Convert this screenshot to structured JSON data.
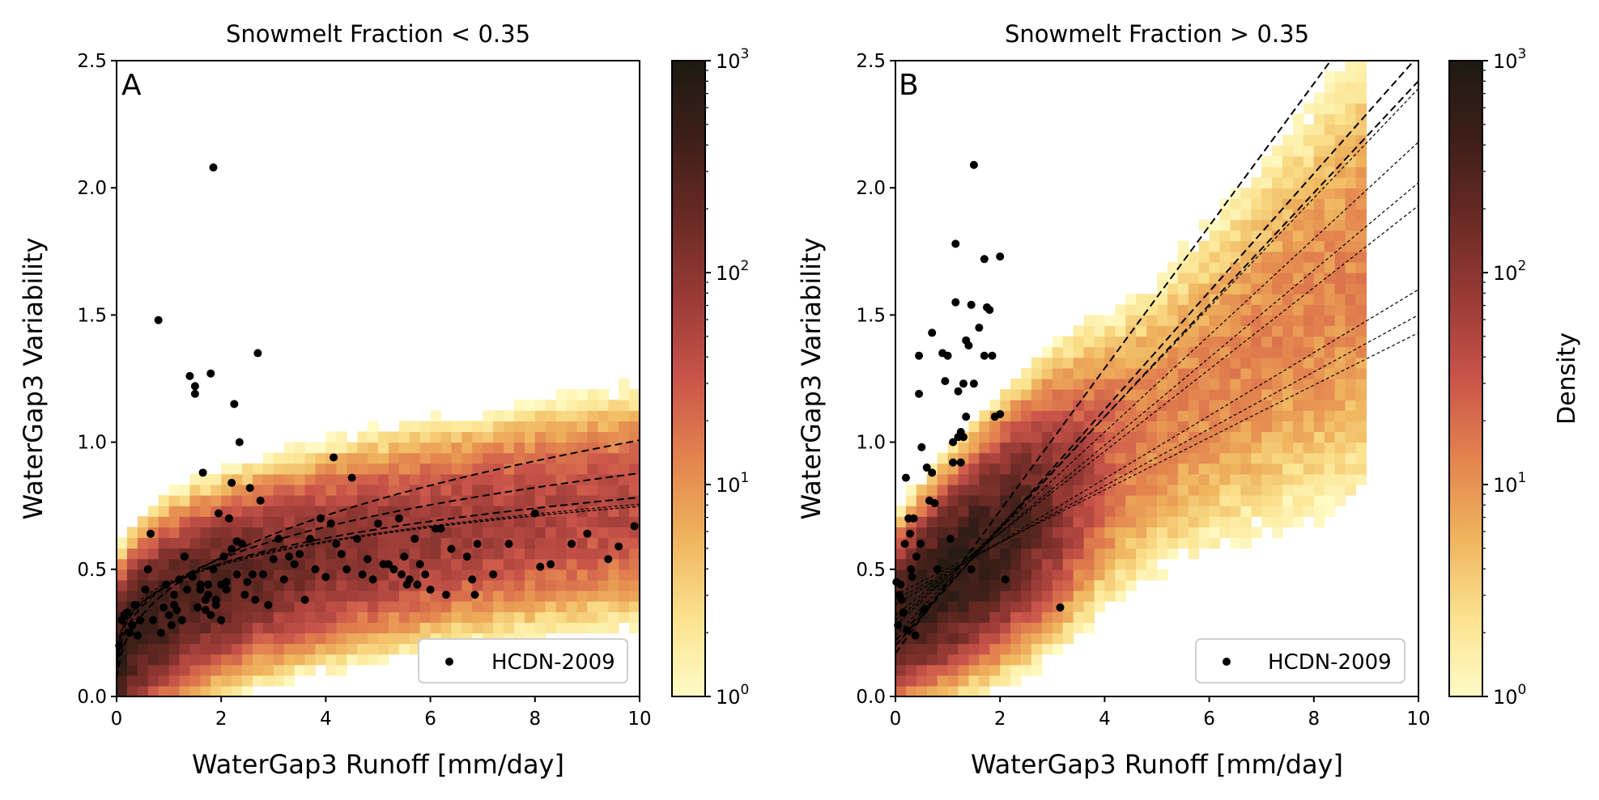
{
  "colorbar_colors": [
    "#fffbc6",
    "#fbe28e",
    "#efb35d",
    "#e3834e",
    "#c9544a",
    "#9a3b36",
    "#6b2a25",
    "#3e1f19",
    "#1d1a10"
  ],
  "chart_data": [
    {
      "type": "heatmap",
      "panel_letter": "A",
      "title": "Snowmelt Fraction < 0.35",
      "xlabel": "WaterGap3 Runoff [mm/day]",
      "ylabel": "WaterGap3 Variability",
      "xlim": [
        0,
        10
      ],
      "ylim": [
        0,
        2.5
      ],
      "xticks": [
        "0",
        "2",
        "4",
        "6",
        "8",
        "10"
      ],
      "yticks": [
        "0.0",
        "0.5",
        "1.0",
        "1.5",
        "2.0",
        "2.5"
      ],
      "legend": {
        "label": "HCDN-2009",
        "placement": "lower-right"
      },
      "colorbar": {
        "scale": "log",
        "range": [
          1,
          1000
        ],
        "ticks": [
          "10",
          "10",
          "10",
          "10"
        ],
        "tick_exponents": [
          "3",
          "2",
          "1",
          "0"
        ],
        "label": ""
      },
      "density_model": {
        "kind": "power-law",
        "center_a": 0.35,
        "center_b": 0.33,
        "spread": 0.14,
        "x_extent": 10,
        "peak": 450
      },
      "points": [
        [
          0.05,
          0.2
        ],
        [
          0.1,
          0.3
        ],
        [
          0.15,
          0.32
        ],
        [
          0.2,
          0.33
        ],
        [
          0.25,
          0.25
        ],
        [
          0.3,
          0.28
        ],
        [
          0.35,
          0.36
        ],
        [
          0.4,
          0.24
        ],
        [
          0.45,
          0.3
        ],
        [
          0.55,
          0.42
        ],
        [
          0.6,
          0.5
        ],
        [
          0.65,
          0.64
        ],
        [
          0.7,
          0.3
        ],
        [
          0.8,
          1.48
        ],
        [
          0.85,
          0.25
        ],
        [
          0.9,
          0.35
        ],
        [
          0.95,
          0.44
        ],
        [
          1.0,
          0.32
        ],
        [
          1.05,
          0.28
        ],
        [
          1.1,
          0.4
        ],
        [
          1.1,
          0.36
        ],
        [
          1.15,
          0.34
        ],
        [
          1.2,
          0.46
        ],
        [
          1.25,
          0.3
        ],
        [
          1.3,
          0.55
        ],
        [
          1.35,
          0.42
        ],
        [
          1.4,
          1.26
        ],
        [
          1.45,
          0.47
        ],
        [
          1.5,
          1.22
        ],
        [
          1.5,
          1.19
        ],
        [
          1.55,
          0.35
        ],
        [
          1.6,
          0.44
        ],
        [
          1.6,
          0.42
        ],
        [
          1.65,
          0.88
        ],
        [
          1.7,
          0.38
        ],
        [
          1.7,
          0.34
        ],
        [
          1.75,
          0.4
        ],
        [
          1.75,
          0.44
        ],
        [
          1.8,
          1.27
        ],
        [
          1.8,
          0.32
        ],
        [
          1.85,
          2.08
        ],
        [
          1.85,
          0.5
        ],
        [
          1.9,
          0.38
        ],
        [
          1.9,
          0.36
        ],
        [
          1.95,
          0.72
        ],
        [
          2.0,
          0.3
        ],
        [
          2.0,
          0.44
        ],
        [
          2.05,
          0.55
        ],
        [
          2.1,
          0.42
        ],
        [
          2.1,
          0.45
        ],
        [
          2.15,
          0.7
        ],
        [
          2.2,
          0.84
        ],
        [
          2.2,
          0.58
        ],
        [
          2.25,
          1.15
        ],
        [
          2.3,
          0.61
        ],
        [
          2.3,
          0.48
        ],
        [
          2.35,
          1.0
        ],
        [
          2.4,
          0.6
        ],
        [
          2.45,
          0.4
        ],
        [
          2.5,
          0.45
        ],
        [
          2.55,
          0.82
        ],
        [
          2.6,
          0.48
        ],
        [
          2.65,
          0.38
        ],
        [
          2.7,
          1.35
        ],
        [
          2.75,
          0.77
        ],
        [
          2.8,
          0.48
        ],
        [
          2.9,
          0.36
        ],
        [
          3.0,
          0.54
        ],
        [
          3.1,
          0.62
        ],
        [
          3.2,
          0.46
        ],
        [
          3.3,
          0.55
        ],
        [
          3.4,
          0.52
        ],
        [
          3.5,
          0.56
        ],
        [
          3.6,
          0.38
        ],
        [
          3.7,
          0.62
        ],
        [
          3.8,
          0.5
        ],
        [
          3.9,
          0.7
        ],
        [
          4.0,
          0.47
        ],
        [
          4.1,
          0.68
        ],
        [
          4.15,
          0.94
        ],
        [
          4.2,
          0.6
        ],
        [
          4.3,
          0.56
        ],
        [
          4.4,
          0.5
        ],
        [
          4.5,
          0.86
        ],
        [
          4.6,
          0.62
        ],
        [
          4.7,
          0.48
        ],
        [
          4.8,
          0.54
        ],
        [
          4.9,
          0.46
        ],
        [
          5.0,
          0.68
        ],
        [
          5.1,
          0.52
        ],
        [
          5.2,
          0.52
        ],
        [
          5.3,
          0.5
        ],
        [
          5.4,
          0.7
        ],
        [
          5.45,
          0.48
        ],
        [
          5.5,
          0.55
        ],
        [
          5.55,
          0.44
        ],
        [
          5.6,
          0.46
        ],
        [
          5.7,
          0.62
        ],
        [
          5.75,
          0.44
        ],
        [
          5.8,
          0.52
        ],
        [
          5.9,
          0.48
        ],
        [
          6.0,
          0.42
        ],
        [
          6.1,
          0.66
        ],
        [
          6.2,
          0.66
        ],
        [
          6.3,
          0.4
        ],
        [
          6.4,
          0.58
        ],
        [
          6.7,
          0.55
        ],
        [
          6.8,
          0.46
        ],
        [
          6.85,
          0.4
        ],
        [
          6.9,
          0.6
        ],
        [
          7.2,
          0.48
        ],
        [
          7.5,
          0.6
        ],
        [
          8.0,
          0.72
        ],
        [
          8.1,
          0.51
        ],
        [
          8.3,
          0.52
        ],
        [
          8.7,
          0.6
        ],
        [
          9.0,
          0.64
        ],
        [
          9.4,
          0.54
        ],
        [
          9.6,
          0.59
        ],
        [
          9.9,
          0.67
        ]
      ],
      "fit_curves": [
        {
          "a": 0.42,
          "b": 0.38,
          "style": "thick"
        },
        {
          "a": 0.44,
          "b": 0.3,
          "style": "thick"
        },
        {
          "a": 0.44,
          "b": 0.25,
          "style": "thick"
        },
        {
          "a": 0.44,
          "b": 0.235,
          "style": "thin"
        },
        {
          "a": 0.44,
          "b": 0.23,
          "style": "thin"
        },
        {
          "a": 0.45,
          "b": 0.22,
          "style": "thin"
        }
      ]
    },
    {
      "type": "heatmap",
      "panel_letter": "B",
      "title": "Snowmelt Fraction > 0.35",
      "xlabel": "WaterGap3 Runoff [mm/day]",
      "ylabel": "WaterGap3 Variability",
      "xlim": [
        0,
        10
      ],
      "ylim": [
        0,
        2.5
      ],
      "xticks": [
        "0",
        "2",
        "4",
        "6",
        "8",
        "10"
      ],
      "yticks": [
        "0.0",
        "0.5",
        "1.0",
        "1.5",
        "2.0",
        "2.5"
      ],
      "legend": {
        "label": "HCDN-2009",
        "placement": "lower-right"
      },
      "colorbar": {
        "scale": "log",
        "range": [
          1,
          1000
        ],
        "ticks": [
          "10",
          "10",
          "10",
          "10"
        ],
        "tick_exponents": [
          "3",
          "2",
          "1",
          "0"
        ],
        "label": "Density"
      },
      "density_model": {
        "kind": "linear",
        "center_a": 0.32,
        "center_b": 0.15,
        "spread": 0.13,
        "x_extent": 9,
        "peak": 650
      },
      "points": [
        [
          0.02,
          0.45
        ],
        [
          0.05,
          0.28
        ],
        [
          0.08,
          0.4
        ],
        [
          0.1,
          0.44
        ],
        [
          0.12,
          0.38
        ],
        [
          0.15,
          0.33
        ],
        [
          0.18,
          0.6
        ],
        [
          0.2,
          0.86
        ],
        [
          0.22,
          0.26
        ],
        [
          0.25,
          0.7
        ],
        [
          0.28,
          0.64
        ],
        [
          0.3,
          0.5
        ],
        [
          0.32,
          0.47
        ],
        [
          0.35,
          0.7
        ],
        [
          0.38,
          0.24
        ],
        [
          0.4,
          0.55
        ],
        [
          0.45,
          1.34
        ],
        [
          0.45,
          1.19
        ],
        [
          0.48,
          0.6
        ],
        [
          0.5,
          0.98
        ],
        [
          0.55,
          0.34
        ],
        [
          0.6,
          0.9
        ],
        [
          0.65,
          0.77
        ],
        [
          0.7,
          0.88
        ],
        [
          0.7,
          1.43
        ],
        [
          0.75,
          0.76
        ],
        [
          0.8,
          0.5
        ],
        [
          0.9,
          1.35
        ],
        [
          0.95,
          1.24
        ],
        [
          1.0,
          1.34
        ],
        [
          1.05,
          0.62
        ],
        [
          1.1,
          0.92
        ],
        [
          1.1,
          1.0
        ],
        [
          1.15,
          1.55
        ],
        [
          1.15,
          1.78
        ],
        [
          1.2,
          1.2
        ],
        [
          1.2,
          1.02
        ],
        [
          1.25,
          0.92
        ],
        [
          1.25,
          1.04
        ],
        [
          1.3,
          1.23
        ],
        [
          1.3,
          1.02
        ],
        [
          1.35,
          1.1
        ],
        [
          1.35,
          1.4
        ],
        [
          1.4,
          1.38
        ],
        [
          1.45,
          1.54
        ],
        [
          1.45,
          0.5
        ],
        [
          1.5,
          2.09
        ],
        [
          1.5,
          1.23
        ],
        [
          1.6,
          1.45
        ],
        [
          1.7,
          1.72
        ],
        [
          1.7,
          1.34
        ],
        [
          1.75,
          1.53
        ],
        [
          1.8,
          1.52
        ],
        [
          1.85,
          1.34
        ],
        [
          1.9,
          1.1
        ],
        [
          2.0,
          1.11
        ],
        [
          2.0,
          1.73
        ],
        [
          2.1,
          0.46
        ],
        [
          3.15,
          0.35
        ]
      ],
      "fit_curves": [
        {
          "a": 0.17,
          "b": 0.28,
          "style": "thick"
        },
        {
          "a": 0.2,
          "b": 0.232,
          "style": "thick"
        },
        {
          "a": 0.22,
          "b": 0.22,
          "style": "thick"
        },
        {
          "a": 0.24,
          "b": 0.215,
          "style": "thin"
        },
        {
          "a": 0.28,
          "b": 0.19,
          "style": "thin"
        },
        {
          "a": 0.3,
          "b": 0.172,
          "style": "thin"
        },
        {
          "a": 0.32,
          "b": 0.161,
          "style": "thin"
        },
        {
          "a": 0.36,
          "b": 0.124,
          "style": "thin"
        },
        {
          "a": 0.38,
          "b": 0.112,
          "style": "thin"
        },
        {
          "a": 0.4,
          "b": 0.103,
          "style": "thin"
        }
      ]
    }
  ]
}
